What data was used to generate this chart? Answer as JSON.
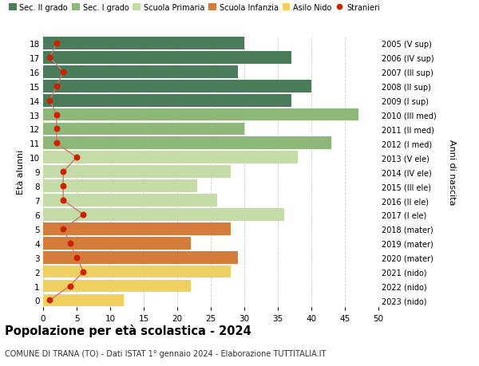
{
  "ages": [
    18,
    17,
    16,
    15,
    14,
    13,
    12,
    11,
    10,
    9,
    8,
    7,
    6,
    5,
    4,
    3,
    2,
    1,
    0
  ],
  "bar_values": [
    30,
    37,
    29,
    40,
    37,
    47,
    30,
    43,
    38,
    28,
    23,
    26,
    36,
    28,
    22,
    29,
    28,
    22,
    12
  ],
  "bar_colors": [
    "#4a7c59",
    "#4a7c59",
    "#4a7c59",
    "#4a7c59",
    "#4a7c59",
    "#8db87a",
    "#8db87a",
    "#8db87a",
    "#c5dba8",
    "#c5dba8",
    "#c5dba8",
    "#c5dba8",
    "#c5dba8",
    "#d47c3a",
    "#d47c3a",
    "#d47c3a",
    "#f0d060",
    "#f0d060",
    "#f0d060"
  ],
  "stranieri_values": [
    2,
    1,
    3,
    2,
    1,
    2,
    2,
    2,
    5,
    3,
    3,
    3,
    6,
    3,
    4,
    5,
    6,
    4,
    1
  ],
  "right_labels": [
    "2005 (V sup)",
    "2006 (IV sup)",
    "2007 (III sup)",
    "2008 (II sup)",
    "2009 (I sup)",
    "2010 (III med)",
    "2011 (II med)",
    "2012 (I med)",
    "2013 (V ele)",
    "2014 (IV ele)",
    "2015 (III ele)",
    "2016 (II ele)",
    "2017 (I ele)",
    "2018 (mater)",
    "2019 (mater)",
    "2020 (mater)",
    "2021 (nido)",
    "2022 (nido)",
    "2023 (nido)"
  ],
  "legend_labels": [
    "Sec. II grado",
    "Sec. I grado",
    "Scuola Primaria",
    "Scuola Infanzia",
    "Asilo Nido",
    "Stranieri"
  ],
  "legend_colors": [
    "#4a7c59",
    "#8db87a",
    "#c5dba8",
    "#d47c3a",
    "#f0d060",
    "#cc2200"
  ],
  "ylabel_left": "Età alunni",
  "ylabel_right": "Anni di nascita",
  "title": "Popolazione per età scolastica - 2024",
  "subtitle": "COMUNE DI TRANA (TO) - Dati ISTAT 1° gennaio 2024 - Elaborazione TUTTITALIA.IT",
  "xlim": [
    0,
    50
  ],
  "xticks": [
    0,
    5,
    10,
    15,
    20,
    25,
    30,
    35,
    40,
    45,
    50
  ],
  "bar_height": 0.88,
  "bg_color": "#ffffff",
  "grid_color": "#cccccc",
  "stranieri_color": "#cc2200",
  "stranieri_line_color": "#cc7777"
}
